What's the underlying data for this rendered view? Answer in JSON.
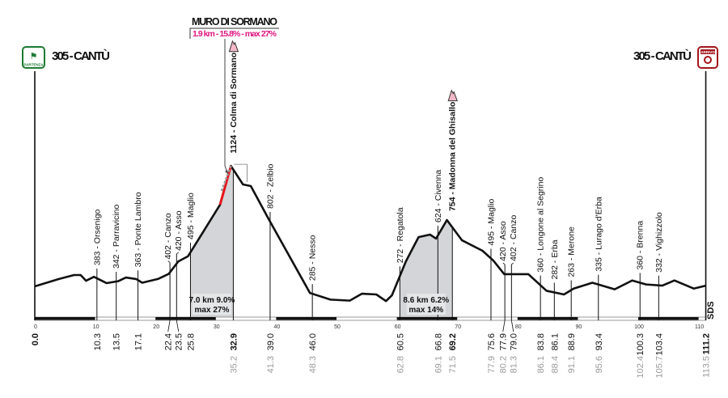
{
  "chart_data": {
    "type": "area",
    "title": "",
    "xlabel": "",
    "ylabel": "",
    "xlim": [
      0,
      111.2
    ],
    "x_ticks": [
      0,
      10,
      20,
      30,
      40,
      50,
      60,
      70,
      80,
      90,
      100,
      110
    ],
    "start": {
      "label": "305 - CANTÙ",
      "badge": "PARTENZA",
      "color": "#1e7a34"
    },
    "finish": {
      "label": "305 - CANTÙ",
      "badge": "ARRIVO",
      "color": "#a3161c"
    },
    "profile": [
      [
        0,
        305
      ],
      [
        4,
        355
      ],
      [
        6.5,
        382
      ],
      [
        7.6,
        382
      ],
      [
        8.5,
        343
      ],
      [
        9.8,
        370
      ],
      [
        11.9,
        327
      ],
      [
        13.8,
        340
      ],
      [
        15.1,
        365
      ],
      [
        16.8,
        355
      ],
      [
        17.8,
        330
      ],
      [
        20.4,
        355
      ],
      [
        22.2,
        390
      ],
      [
        23.8,
        475
      ],
      [
        25.4,
        510
      ],
      [
        30.7,
        860
      ],
      [
        32.5,
        1124
      ],
      [
        34.5,
        998
      ],
      [
        35.8,
        987
      ],
      [
        38.7,
        767
      ],
      [
        40.7,
        620
      ],
      [
        45.6,
        260
      ],
      [
        49,
        215
      ],
      [
        52.2,
        208
      ],
      [
        54.2,
        255
      ],
      [
        56.6,
        250
      ],
      [
        58.2,
        205
      ],
      [
        59.2,
        245
      ],
      [
        61.5,
        475
      ],
      [
        63.6,
        640
      ],
      [
        65.5,
        657
      ],
      [
        66.5,
        630
      ],
      [
        68.3,
        756
      ],
      [
        70.8,
        618
      ],
      [
        74.2,
        547
      ],
      [
        76,
        480
      ],
      [
        77.8,
        388
      ],
      [
        81.8,
        388
      ],
      [
        84.8,
        275
      ],
      [
        87.7,
        250
      ],
      [
        89.3,
        290
      ],
      [
        92.4,
        330
      ],
      [
        96.1,
        285
      ],
      [
        99,
        345
      ],
      [
        101.3,
        318
      ],
      [
        104,
        310
      ],
      [
        106,
        345
      ],
      [
        109.2,
        290
      ],
      [
        111.2,
        310
      ]
    ],
    "steep_segment": {
      "from_km": 30.7,
      "to_km": 32.5,
      "color": "#e8161c"
    },
    "shaded_climbs": [
      {
        "from_km": 25.8,
        "to_km": 32.9,
        "line1": "7.0 km 9.0%",
        "line2": "max 27%"
      },
      {
        "from_km": 60.5,
        "to_km": 69.2,
        "line1": "8.6 km 6.2%",
        "line2": "max 14%"
      }
    ],
    "callout": {
      "title": "MURO DI SORMANO",
      "detail": "1.9 km - 15.8% - max  27%",
      "color": "#e0157f"
    },
    "markers": [
      {
        "km": "0.0",
        "bold": true
      },
      {
        "km": "10.3",
        "label": "383 - Orsenigo"
      },
      {
        "km": "13.5",
        "label": "342 - Parravicino"
      },
      {
        "km": "17.1",
        "label": "363 - Ponte Lambro"
      },
      {
        "km": "22.4",
        "label": "402 - Canzo"
      },
      {
        "km": "23.5",
        "label": "420 - Asso"
      },
      {
        "km": "25.8",
        "label": "495 - Maglio"
      },
      {
        "km": "32.9",
        "label": "1124 - Colma di Sormano",
        "bold": true,
        "gpm": true,
        "alt_km": "35.2"
      },
      {
        "km": "39.0",
        "label": "802 - Zelbio",
        "alt_km": "41.3"
      },
      {
        "km": "46.0",
        "label": "285 - Nesso",
        "alt_km": "48.3"
      },
      {
        "km": "60.5",
        "label": "272 - Regatola",
        "alt_km": "62.8"
      },
      {
        "km": "66.8",
        "label": "624 - Civenna",
        "alt_km": "69.1"
      },
      {
        "km": "69.2",
        "label": "754 - Madonna del Ghisallo",
        "bold": true,
        "gpm": true,
        "alt_km": "71.5"
      },
      {
        "km": "75.6",
        "label": "495 - Maglio",
        "alt_km": "77.9"
      },
      {
        "km": "77.9",
        "label": "420 - Asso",
        "alt_km": "80.2"
      },
      {
        "km": "79.0",
        "label": "402 - Canzo",
        "alt_km": "81.3"
      },
      {
        "km": "83.8",
        "label": "360 - Longone al Segrino",
        "alt_km": "86.1"
      },
      {
        "km": "86.1",
        "label": "282 - Erba",
        "alt_km": "88.4"
      },
      {
        "km": "88.9",
        "label": "263 - Merone",
        "alt_km": "91.1"
      },
      {
        "km": "93.4",
        "label": "335 - Lurago d'Erba",
        "alt_km": "95.6"
      },
      {
        "km": "100.3",
        "label": "360 - Brenna",
        "alt_km": "102.4"
      },
      {
        "km": "103.4",
        "label": "332 - Vighizzolo",
        "alt_km": "105.7"
      },
      {
        "km": "111.2",
        "bold": true,
        "alt_km": "113.5"
      }
    ],
    "watermark": "SDS",
    "colors": {
      "fill": "#d3d5d8",
      "gpm_icon": "#f4b8c8",
      "alt_km": "#9a9a9a"
    }
  }
}
